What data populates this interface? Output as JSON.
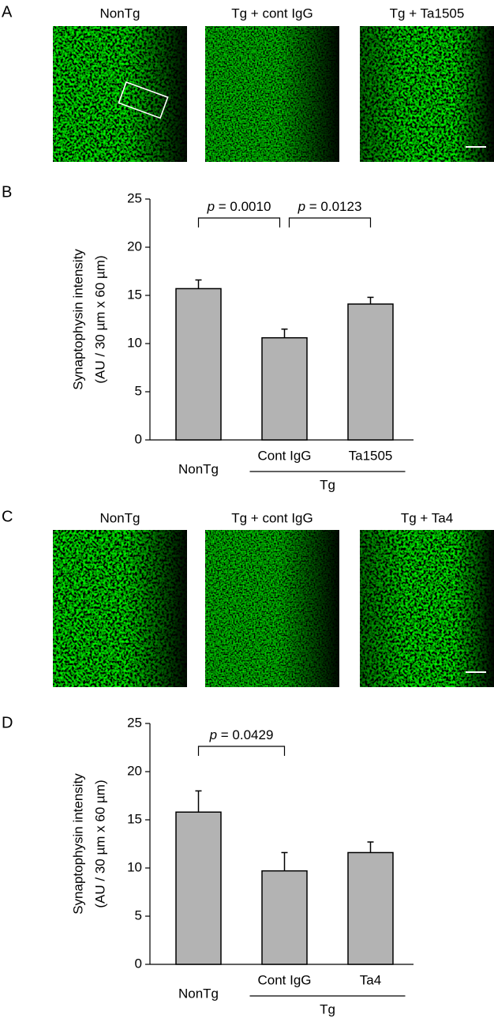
{
  "image_panels": [
    {
      "letter": "A",
      "labels": [
        "NonTg",
        "Tg + cont IgG",
        "Tg + Ta1505"
      ]
    },
    {
      "letter": "C",
      "labels": [
        "NonTg",
        "Tg + cont IgG",
        "Tg + Ta4"
      ]
    }
  ],
  "chart_data": [
    {
      "type": "bar",
      "panel_letter": "B",
      "y_label": [
        "Synaptophysin intensity",
        "(AU / 30 µm x 60 µm)"
      ],
      "categories": [
        "NonTg",
        "Cont IgG",
        "Ta1505"
      ],
      "values": [
        15.7,
        10.6,
        14.1
      ],
      "errors": [
        0.9,
        0.9,
        0.7
      ],
      "color": "#b3b3b3",
      "ylim": [
        0,
        25
      ],
      "yticks": [
        0,
        5,
        10,
        15,
        20,
        25
      ],
      "groups": [
        {
          "label": "Tg",
          "categories": [
            1,
            2
          ]
        }
      ],
      "comparisons": [
        {
          "groups": [
            0,
            1
          ],
          "label": "p = 0.0010"
        },
        {
          "groups": [
            1,
            2
          ],
          "label": "p = 0.0123"
        }
      ]
    },
    {
      "type": "bar",
      "panel_letter": "D",
      "y_label": [
        "Synaptophysin intensity",
        "(AU / 30 µm x 60 µm)"
      ],
      "categories": [
        "NonTg",
        "Cont IgG",
        "Ta4"
      ],
      "values": [
        15.8,
        9.7,
        11.6
      ],
      "errors": [
        2.2,
        1.9,
        1.1
      ],
      "color": "#b3b3b3",
      "ylim": [
        0,
        25
      ],
      "yticks": [
        0,
        5,
        10,
        15,
        20,
        25
      ],
      "groups": [
        {
          "label": "Tg",
          "categories": [
            1,
            2
          ]
        }
      ],
      "comparisons": [
        {
          "groups": [
            0,
            1
          ],
          "label": "p = 0.0429"
        }
      ]
    }
  ]
}
